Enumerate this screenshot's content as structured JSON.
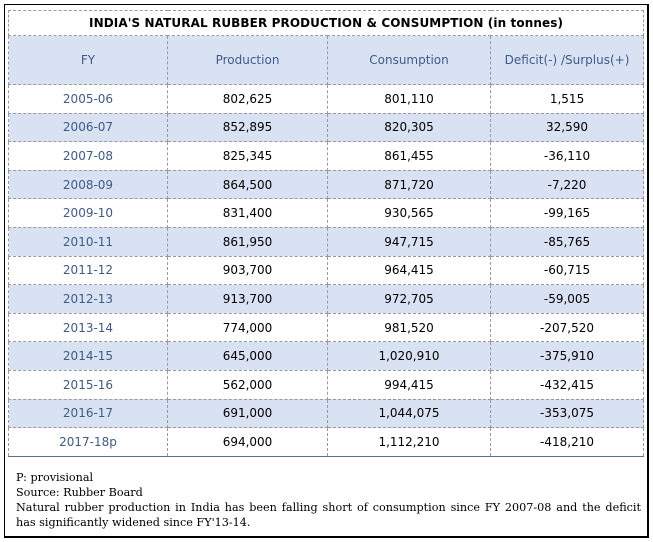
{
  "table": {
    "title": "INDIA'S NATURAL RUBBER PRODUCTION & CONSUMPTION (in tonnes)",
    "columns": [
      "FY",
      "Production",
      "Consumption",
      "Deficit(-) /Surplus(+)"
    ],
    "rows": [
      {
        "fy": "2005-06",
        "production": "802,625",
        "consumption": "801,110",
        "balance": "1,515"
      },
      {
        "fy": "2006-07",
        "production": "852,895",
        "consumption": "820,305",
        "balance": "32,590"
      },
      {
        "fy": "2007-08",
        "production": "825,345",
        "consumption": "861,455",
        "balance": "-36,110"
      },
      {
        "fy": "2008-09",
        "production": "864,500",
        "consumption": "871,720",
        "balance": "-7,220"
      },
      {
        "fy": "2009-10",
        "production": "831,400",
        "consumption": "930,565",
        "balance": "-99,165"
      },
      {
        "fy": "2010-11",
        "production": "861,950",
        "consumption": "947,715",
        "balance": "-85,765"
      },
      {
        "fy": "2011-12",
        "production": "903,700",
        "consumption": "964,415",
        "balance": "-60,715"
      },
      {
        "fy": "2012-13",
        "production": "913,700",
        "consumption": "972,705",
        "balance": "-59,005"
      },
      {
        "fy": "2013-14",
        "production": "774,000",
        "consumption": "981,520",
        "balance": "-207,520"
      },
      {
        "fy": "2014-15",
        "production": "645,000",
        "consumption": "1,020,910",
        "balance": "-375,910"
      },
      {
        "fy": "2015-16",
        "production": "562,000",
        "consumption": "994,415",
        "balance": "-432,415"
      },
      {
        "fy": "2016-17",
        "production": "691,000",
        "consumption": "1,044,075",
        "balance": "-353,075"
      },
      {
        "fy": "2017-18p",
        "production": "694,000",
        "consumption": "1,112,210",
        "balance": "-418,210"
      }
    ]
  },
  "notes": {
    "provisional": "P: provisional",
    "source": "Source: Rubber Board",
    "summary": "Natural rubber production in India has been falling short of consumption since FY 2007-08 and the deficit has significantly widened since FY'13-14."
  },
  "colors": {
    "header_fill": "#d9e2f3",
    "header_text": "#3f5a8a",
    "alt_row_fill": "#d9e2f3",
    "rule": "#5a7190"
  }
}
